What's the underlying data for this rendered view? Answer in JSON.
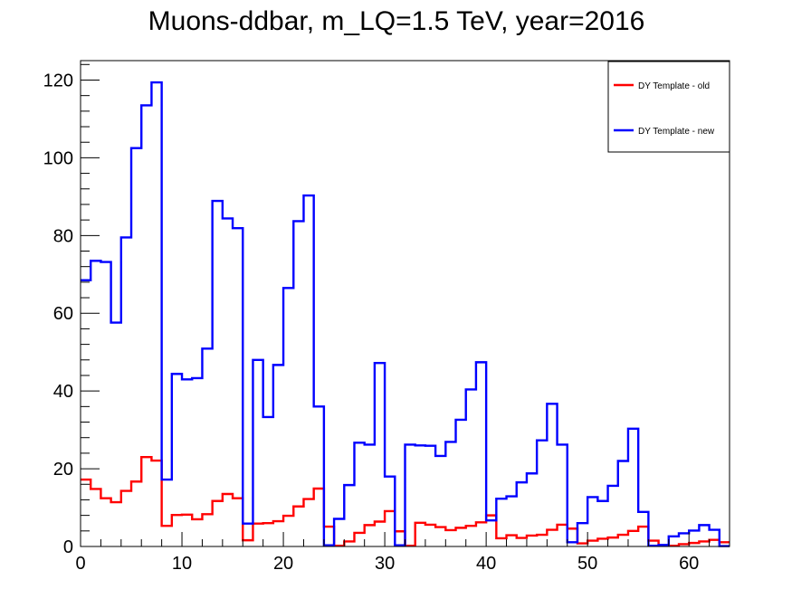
{
  "chart_data": {
    "type": "line",
    "style": "step-histogram",
    "title": "Muons-ddbar, m_LQ=1.5 TeV, year=2016",
    "xlabel": "",
    "ylabel": "",
    "xlim": [
      0,
      64
    ],
    "ylim": [
      0,
      125
    ],
    "x_ticks": [
      0,
      10,
      20,
      30,
      40,
      50,
      60
    ],
    "x_tick_labels": [
      "0",
      "10",
      "20",
      "30",
      "40",
      "50",
      "60"
    ],
    "y_ticks": [
      0,
      20,
      40,
      60,
      80,
      100,
      120
    ],
    "y_tick_labels": [
      "0",
      "20",
      "40",
      "60",
      "80",
      "100",
      "120"
    ],
    "grid": false,
    "legend_position": "top-right",
    "bin_edges_start": 0,
    "bin_width": 1,
    "series": [
      {
        "name": "DY Template - old",
        "color": "#ff0000",
        "values": [
          17.2,
          14.8,
          12.4,
          11.4,
          14.3,
          16.7,
          23.0,
          22.1,
          5.3,
          8.1,
          8.2,
          7.0,
          8.3,
          11.7,
          13.5,
          12.4,
          1.6,
          5.9,
          6.0,
          6.5,
          7.9,
          10.3,
          12.2,
          14.9,
          5.1,
          0.2,
          1.3,
          3.5,
          5.5,
          6.4,
          9.1,
          3.9,
          0.2,
          6.1,
          5.6,
          5.0,
          4.2,
          4.8,
          5.3,
          6.2,
          8.0,
          2.1,
          2.9,
          2.2,
          2.8,
          3.0,
          4.3,
          5.6,
          4.6,
          0.8,
          1.5,
          2.0,
          2.3,
          3.0,
          4.0,
          5.1,
          1.5,
          0.2,
          0.2,
          0.6,
          0.9,
          1.3,
          1.7,
          1.1
        ]
      },
      {
        "name": "DY Template - new",
        "color": "#0000ff",
        "values": [
          68.5,
          73.5,
          73.2,
          57.6,
          79.5,
          102.5,
          113.5,
          119.4,
          17.2,
          44.4,
          43.0,
          43.3,
          50.9,
          88.9,
          84.4,
          81.9,
          5.9,
          48.0,
          33.3,
          46.7,
          66.5,
          83.7,
          90.3,
          36.0,
          0.3,
          7.1,
          15.8,
          26.7,
          26.2,
          47.2,
          18.0,
          0.3,
          26.2,
          26.0,
          25.9,
          23.3,
          26.9,
          32.6,
          40.4,
          47.4,
          6.7,
          12.3,
          12.9,
          16.5,
          18.8,
          27.3,
          36.7,
          26.2,
          1.1,
          6.0,
          12.7,
          11.7,
          15.6,
          22.0,
          30.3,
          8.9,
          0.2,
          0.4,
          2.6,
          3.4,
          4.1,
          5.5,
          4.3,
          0.1
        ]
      }
    ]
  }
}
